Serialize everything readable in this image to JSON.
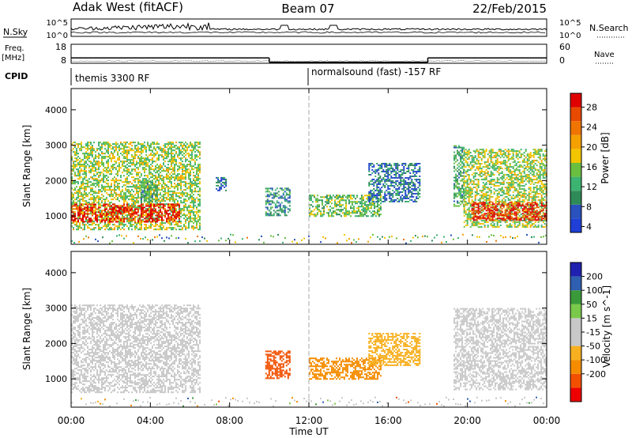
{
  "header": {
    "site": "Adak West (fitACF)",
    "beam": "Beam 07",
    "date": "22/Feb/2015"
  },
  "summary": {
    "nsky_label": "N.Sky",
    "nsky_ticks": [
      "10^5",
      "10^0"
    ],
    "nsearch_label": "N.Search",
    "nsearch_ticks": [
      "10^5",
      "10^0"
    ],
    "freq_label": "Freq.",
    "freq_unit": "[MHz]",
    "freq_ticks": [
      "18",
      "8"
    ],
    "nave_label": "Nave",
    "nave_ticks": [
      "60",
      "0"
    ],
    "cpid_label": "CPID",
    "cpid_1": "themis 3300 RF",
    "cpid_2": "normalsound (fast) -157 RF"
  },
  "colors": {
    "power": [
      "#1f3fd6",
      "#2a52be",
      "#2e8b57",
      "#3cb371",
      "#6abf40",
      "#f2c500",
      "#f5a000",
      "#ef7400",
      "#e84a00",
      "#e00000"
    ],
    "velocity": [
      "#ee0000",
      "#f25000",
      "#f58c00",
      "#f7b020",
      "#c8c8c8",
      "#c8c8c8",
      "#7ac94a",
      "#3a9a3a",
      "#2f5fb0",
      "#2020b0"
    ],
    "scatter_gray": "#c8c8c8"
  },
  "chart_data": [
    {
      "type": "heatmap",
      "panel": "power",
      "ylabel": "Slant Range [km]",
      "ylim": [
        200,
        4600
      ],
      "y_ticks": [
        "4000",
        "3000",
        "2000",
        "1000"
      ],
      "y_tick_values": [
        4000,
        3000,
        2000,
        1000
      ],
      "xlim_hours": [
        0,
        24
      ],
      "colorbar_label": "Power [dB]",
      "colorbar_ticks": [
        "28",
        "24",
        "20",
        "16",
        "12",
        "8",
        "4"
      ],
      "colorbar_range": [
        0,
        30
      ],
      "echo_regions": [
        {
          "t0": 0.0,
          "t1": 6.5,
          "r0": 600,
          "r1": 3100,
          "value": 14
        },
        {
          "t0": 0.0,
          "t1": 5.5,
          "r0": 850,
          "r1": 1350,
          "value": 28
        },
        {
          "t0": 3.5,
          "t1": 4.3,
          "r0": 1400,
          "r1": 2000,
          "value": 10
        },
        {
          "t0": 7.3,
          "t1": 7.8,
          "r0": 1700,
          "r1": 2100,
          "value": 6
        },
        {
          "t0": 9.8,
          "t1": 11.0,
          "r0": 1000,
          "r1": 1800,
          "value": 8
        },
        {
          "t0": 12.0,
          "t1": 15.6,
          "r0": 1000,
          "r1": 1600,
          "value": 12
        },
        {
          "t0": 15.0,
          "t1": 17.6,
          "r0": 1400,
          "r1": 2500,
          "value": 6
        },
        {
          "t0": 19.3,
          "t1": 19.8,
          "r0": 1300,
          "r1": 3000,
          "value": 10
        },
        {
          "t0": 19.8,
          "t1": 24.0,
          "r0": 700,
          "r1": 2900,
          "value": 14
        },
        {
          "t0": 20.2,
          "t1": 24.0,
          "r0": 900,
          "r1": 1400,
          "value": 28
        }
      ]
    },
    {
      "type": "heatmap",
      "panel": "velocity",
      "ylabel": "Slant Range [km]",
      "ylim": [
        200,
        4600
      ],
      "y_ticks": [
        "4000",
        "3000",
        "2000",
        "1000"
      ],
      "y_tick_values": [
        4000,
        3000,
        2000,
        1000
      ],
      "xlim_hours": [
        0,
        24
      ],
      "xlabel": "Time UT",
      "x_ticks": [
        "00:00",
        "04:00",
        "08:00",
        "12:00",
        "16:00",
        "20:00",
        "00:00"
      ],
      "x_tick_values": [
        0,
        4,
        8,
        12,
        16,
        20,
        24
      ],
      "colorbar_label": "Velocity [m s^-1]",
      "colorbar_ticks": [
        "200",
        "100",
        "50",
        "15",
        "-15",
        "-50",
        "-100",
        "-200"
      ],
      "echo_regions": [
        {
          "t0": 0.0,
          "t1": 6.5,
          "r0": 600,
          "r1": 3100,
          "value": 0
        },
        {
          "t0": 9.8,
          "t1": 11.0,
          "r0": 1000,
          "r1": 1800,
          "value": -120
        },
        {
          "t0": 12.0,
          "t1": 15.6,
          "r0": 1000,
          "r1": 1600,
          "value": -60
        },
        {
          "t0": 15.0,
          "t1": 17.6,
          "r0": 1400,
          "r1": 2300,
          "value": -40
        },
        {
          "t0": 19.3,
          "t1": 24.0,
          "r0": 700,
          "r1": 3000,
          "value": 0
        }
      ]
    }
  ]
}
